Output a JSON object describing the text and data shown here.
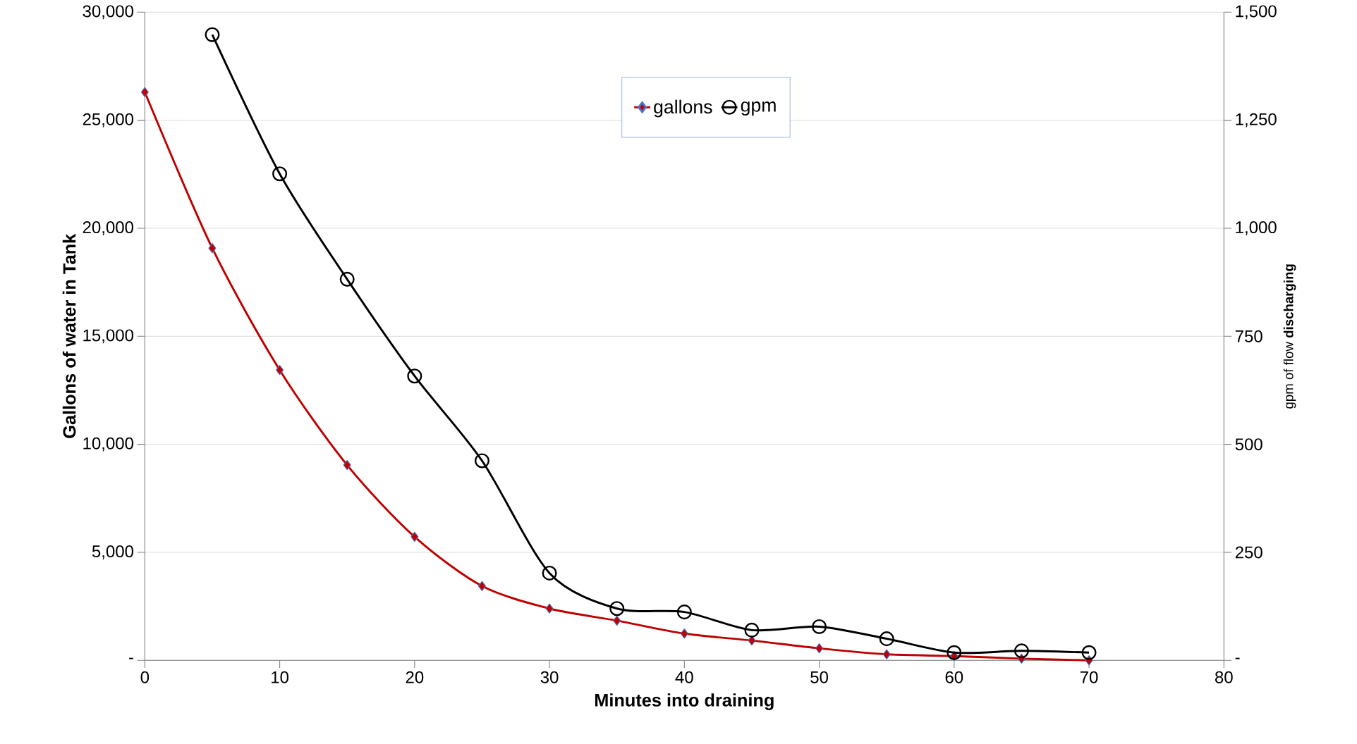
{
  "chart_data": {
    "type": "line",
    "xlabel": "Minutes into draining",
    "ylabel": "Gallons of water in Tank",
    "y2label": "gpm of flow **discharging**",
    "x": [
      0,
      5,
      10,
      15,
      20,
      25,
      30,
      35,
      40,
      45,
      50,
      55,
      60,
      65,
      70
    ],
    "series": [
      {
        "name": "gallons",
        "color": "#c00000",
        "marker": "diamond",
        "values": [
          26300,
          19080,
          13440,
          9040,
          5720,
          3440,
          2400,
          1840,
          1240,
          920,
          560,
          280,
          200,
          80,
          0
        ]
      },
      {
        "name": "gpm",
        "color": "#000000",
        "marker": "circle",
        "axis": "y2",
        "x": [
          5,
          10,
          15,
          20,
          25,
          30,
          35,
          40,
          45,
          50,
          55,
          60,
          65,
          70
        ],
        "values": [
          1448,
          1126,
          882,
          658,
          462,
          202,
          120,
          112,
          70,
          78,
          50,
          18,
          22,
          18
        ]
      }
    ],
    "xlim": [
      0,
      80
    ],
    "xticks": [
      0,
      10,
      20,
      30,
      40,
      50,
      60,
      70,
      80
    ],
    "ylim": [
      0,
      30000
    ],
    "yticks": [
      {
        "value": 0,
        "label": "-"
      },
      {
        "value": 5000,
        "label": "5,000"
      },
      {
        "value": 10000,
        "label": "10,000"
      },
      {
        "value": 15000,
        "label": "15,000"
      },
      {
        "value": 20000,
        "label": "20,000"
      },
      {
        "value": 25000,
        "label": "25,000"
      },
      {
        "value": 30000,
        "label": "30,000"
      }
    ],
    "y2lim": [
      0,
      1500
    ],
    "y2ticks": [
      {
        "value": 0,
        "label": "-"
      },
      {
        "value": 250,
        "label": "250"
      },
      {
        "value": 500,
        "label": "500"
      },
      {
        "value": 750,
        "label": "750"
      },
      {
        "value": 1000,
        "label": "1,000"
      },
      {
        "value": 1250,
        "label": "1,250"
      },
      {
        "value": 1500,
        "label": "1,500"
      }
    ],
    "grid": "y",
    "legend": "top"
  }
}
